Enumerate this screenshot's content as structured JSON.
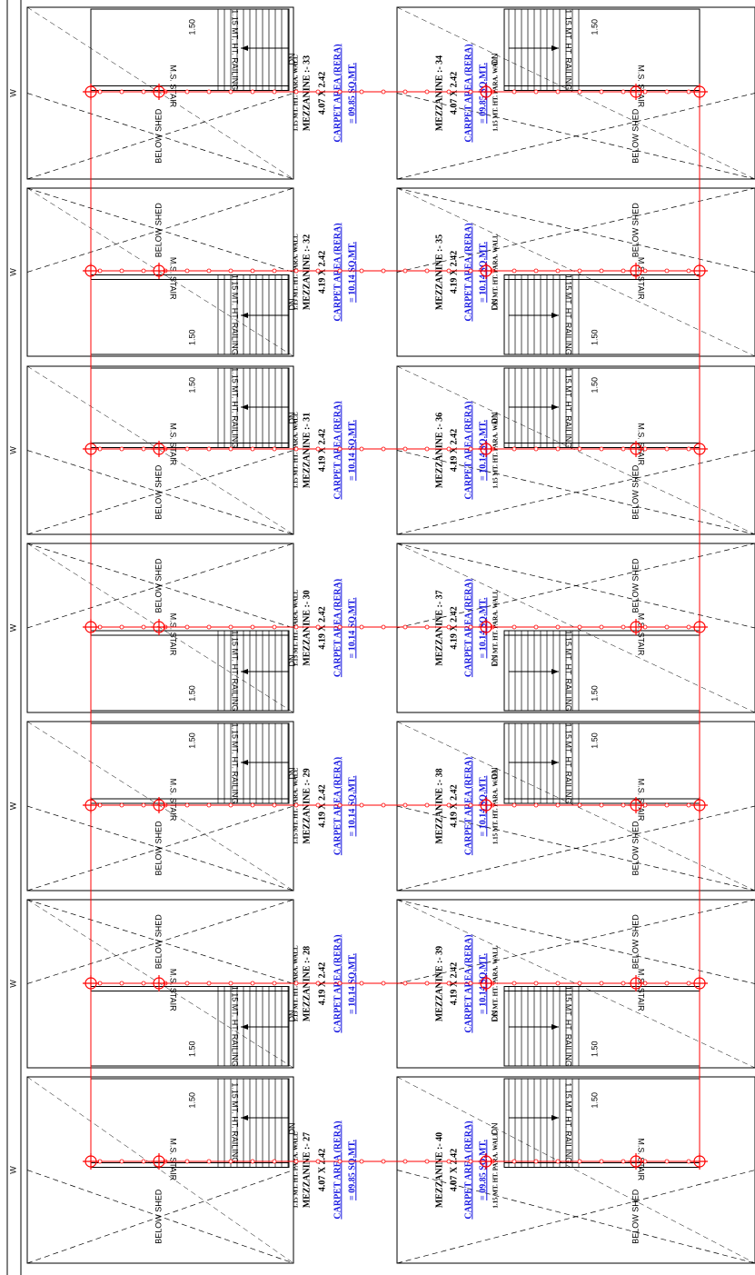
{
  "left": [
    {
      "label": "MEZZANINE :- 33",
      "size": "4.07 X 2.42",
      "area_title": "CARPET AREA (RERA)",
      "area": "= 09.85 SQ.MT.",
      "wall": "1.15 MT. HT. PARA. WALL",
      "shed": "BELOW SHED",
      "stair": "M.S. STAIR",
      "railing": "1.15 MT. HT. RAILING",
      "width": "1.50",
      "dn": "DN",
      "w": "W"
    },
    {
      "label": "MEZZANINE :- 32",
      "size": "4.19 X 2.42",
      "area_title": "CARPET AREA (RERA)",
      "area": "= 10.14 SQ.MT.",
      "wall": "1.15 MT. HT. PARA. WALL",
      "shed": "BELOW SHED",
      "stair": "M.S. STAIR",
      "railing": "1.15 MT. HT. RAILING",
      "width": "1.50",
      "dn": "DN",
      "w": "W"
    },
    {
      "label": "MEZZANINE :- 31",
      "size": "4.19 X 2.42",
      "area_title": "CARPET AREA (RERA)",
      "area": "= 10.14 SQ.MT.",
      "wall": "1.15 MT. HT. PARA. WALL",
      "shed": "BELOW SHED",
      "stair": "M.S. STAIR",
      "railing": "1.15 MT. HT. RAILING",
      "width": "1.50",
      "dn": "DN",
      "w": "W"
    },
    {
      "label": "MEZZANINE :- 30",
      "size": "4.19 X 2.42",
      "area_title": "CARPET AREA (RERA)",
      "area": "= 10.14 SQ.MT.",
      "wall": "1.15 MT. HT. PARA. WALL",
      "shed": "BELOW SHED",
      "stair": "M.S. STAIR",
      "railing": "1.15 MT. HT. RAILING",
      "width": "1.50",
      "dn": "DN",
      "w": "W"
    },
    {
      "label": "MEZZANINE :- 29",
      "size": "4.19 X 2.42",
      "area_title": "CARPET AREA (RERA)",
      "area": "= 10.14 SQ.MT.",
      "wall": "1.15 MT. HT. PARA. WALL",
      "shed": "BELOW SHED",
      "stair": "M.S. STAIR",
      "railing": "1.15 MT. HT. RAILING",
      "width": "1.50",
      "dn": "DN",
      "w": "W"
    },
    {
      "label": "MEZZANINE :- 28",
      "size": "4.19 X 2.42",
      "area_title": "CARPET AREA (RERA)",
      "area": "= 10.14 SQ.MT.",
      "wall": "1.15 MT. HT. PARA. WALL",
      "shed": "BELOW SHED",
      "stair": "M.S. STAIR",
      "railing": "1.15 MT. HT. RAILING",
      "width": "1.50",
      "dn": "DN",
      "w": "W"
    },
    {
      "label": "MEZZANINE :- 27",
      "size": "4.07 X 2.42",
      "area_title": "CARPET AREA (RERA)",
      "area": "= 09.85 SQ.MT.",
      "wall": "1.15 MT. HT. PARA. WALL",
      "shed": "BELOW SHED",
      "stair": "M.S. STAIR",
      "railing": "1.15 MT. HT. RAILING",
      "width": "1.50",
      "dn": "DN",
      "w": "W"
    }
  ],
  "right": [
    {
      "label": "MEZZANINE :- 34",
      "size": "4.07 X 2.42",
      "area_title": "CARPET AREA (RERA)",
      "area": "= 09.85 SQ.MT.",
      "wall": "1.15 MT. HT. PARA. WALL",
      "shed": "BELOW SHED",
      "stair": "M.S. STAIR",
      "railing": "1.15 MT. HT. RAILING",
      "width": "1.50",
      "dn": "DN"
    },
    {
      "label": "MEZZANINE :- 35",
      "size": "4.19 X 2.42",
      "area_title": "CARPET AREA (RERA)",
      "area": "= 10.14 SQ.MT.",
      "wall": "1.15 MT. HT. PARA. WALL",
      "shed": "BELOW SHED",
      "stair": "M.S. STAIR",
      "railing": "1.15 MT. HT. RAILING",
      "width": "1.50",
      "dn": "DN"
    },
    {
      "label": "MEZZANINE :- 36",
      "size": "4.19 X 2.42",
      "area_title": "CARPET AREA (RERA)",
      "area": "= 10.14 SQ.MT.",
      "wall": "1.15 MT. HT. PARA. WALL",
      "shed": "BELOW SHED",
      "stair": "M.S. STAIR",
      "railing": "1.15 MT. HT. RAILING",
      "width": "1.50",
      "dn": "DN"
    },
    {
      "label": "MEZZANINE :- 37",
      "size": "4.19 X 2.42",
      "area_title": "CARPET AREA (RERA)",
      "area": "= 10.14 SQ.MT.",
      "wall": "1.15 MT. HT. PARA. WALL",
      "shed": "BELOW SHED",
      "stair": "M.S. STAIR",
      "railing": "1.15 MT. HT. RAILING",
      "width": "1.50",
      "dn": "DN"
    },
    {
      "label": "MEZZANINE :- 38",
      "size": "4.19 X 2.42",
      "area_title": "CARPET AREA (RERA)",
      "area": "= 10.14 SQ.MT.",
      "wall": "1.15 MT. HT. PARA. WALL",
      "shed": "BELOW SHED",
      "stair": "M.S. STAIR",
      "railing": "1.15 MT. HT. RAILING",
      "width": "1.50",
      "dn": "DN"
    },
    {
      "label": "MEZZANINE :- 39",
      "size": "4.19 X 2.42",
      "area_title": "CARPET AREA (RERA)",
      "area": "= 10.14 SQ.MT.",
      "wall": "1.15 MT. HT. PARA. WALL",
      "shed": "BELOW SHED",
      "stair": "M.S. STAIR",
      "railing": "1.15 MT. HT. RAILING",
      "width": "1.50",
      "dn": "DN"
    },
    {
      "label": "MEZZANINE :- 40",
      "size": "4.07 X 2.42",
      "area_title": "CARPET AREA (RERA)",
      "area": "= 09.85 SQ.MT.",
      "wall": "1.15 MT. HT. PARA. WALL",
      "shed": "BELOW SHED",
      "stair": "M.S. STAIR",
      "railing": "1.15 MT. HT. RAILING",
      "width": "1.50",
      "dn": "DN"
    }
  ]
}
